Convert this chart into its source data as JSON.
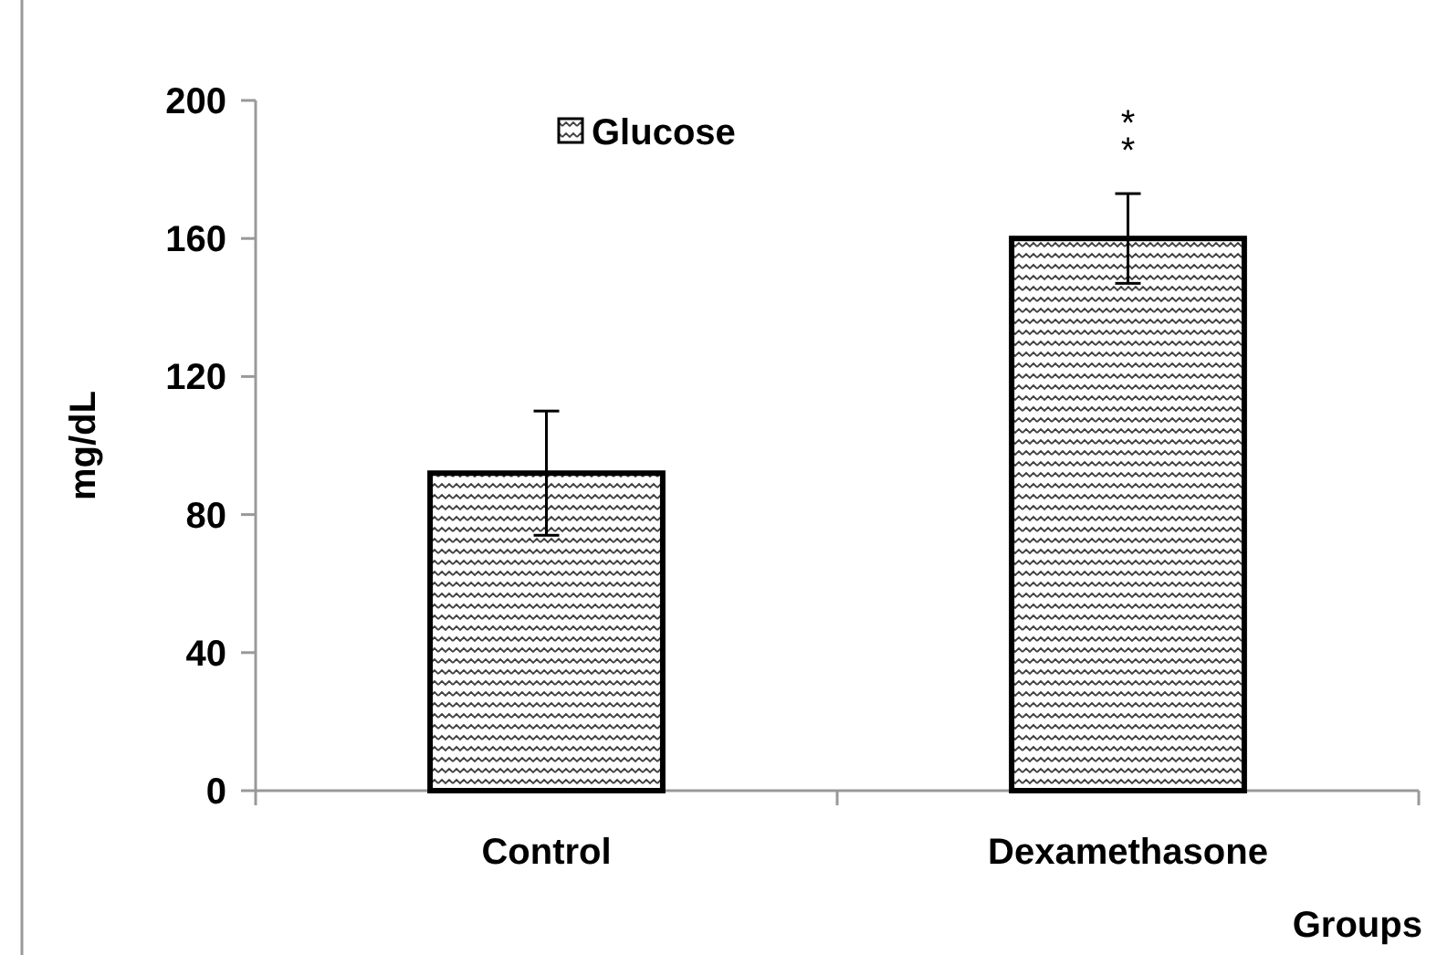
{
  "chart_data": {
    "type": "bar",
    "categories": [
      "Control",
      "Dexamethasone"
    ],
    "series": [
      {
        "name": "Glucose",
        "color": "#000000",
        "values": [
          92,
          160
        ],
        "errors": [
          18,
          13
        ]
      }
    ],
    "ylabel": "mg/dL",
    "xlabel": "Groups",
    "ylim": [
      0,
      200
    ],
    "yticks": [
      0,
      40,
      80,
      120,
      160,
      200
    ],
    "grid": false,
    "legend": "top",
    "annotations": [
      "**"
    ]
  }
}
